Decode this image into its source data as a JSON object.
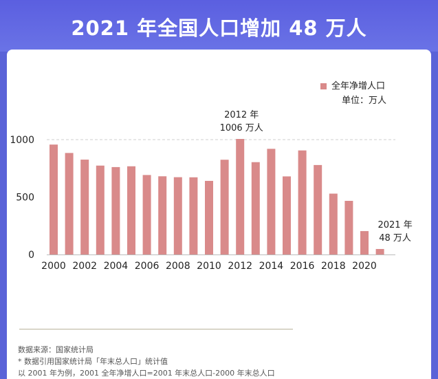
{
  "header": {
    "title": "2021 年全国人口增加 48 万人"
  },
  "legend": {
    "label": "全年净增人口",
    "unit": "单位：万人"
  },
  "annotations": [
    {
      "line1": "2012 年",
      "line2": "1006 万人",
      "year": 2012
    },
    {
      "line1": "2021 年",
      "line2": "48 万人",
      "year": 2021
    }
  ],
  "footnotes": {
    "source": "数据来源：国家统计局",
    "note1": "* 数据引用国家统计局「年末总人口」统计值",
    "note2": "以 2001 年为例，2001 全年净增人口=2001 年末总人口-2000 年末总人口"
  },
  "colors": {
    "bar": "#d98a8a",
    "banner": "#5b5fe0",
    "gridline": "#cfcfcf"
  },
  "chart_data": {
    "type": "bar",
    "categories": [
      "2000",
      "2001",
      "2002",
      "2003",
      "2004",
      "2005",
      "2006",
      "2007",
      "2008",
      "2009",
      "2010",
      "2011",
      "2012",
      "2013",
      "2014",
      "2015",
      "2016",
      "2017",
      "2018",
      "2019",
      "2020",
      "2021"
    ],
    "series": [
      {
        "name": "全年净增人口",
        "values": [
          957,
          884,
          826,
          774,
          761,
          768,
          692,
          681,
          673,
          672,
          641,
          825,
          1006,
          804,
          920,
          680,
          906,
          779,
          530,
          467,
          204,
          48
        ]
      }
    ],
    "xticks": [
      "2000",
      "2002",
      "2004",
      "2006",
      "2008",
      "2010",
      "2012",
      "2014",
      "2016",
      "2018",
      "2020"
    ],
    "yticks": [
      0,
      500,
      1000
    ],
    "ylim": [
      0,
      1000
    ],
    "dashed_reference": 1000,
    "xlabel": "",
    "ylabel": ""
  }
}
